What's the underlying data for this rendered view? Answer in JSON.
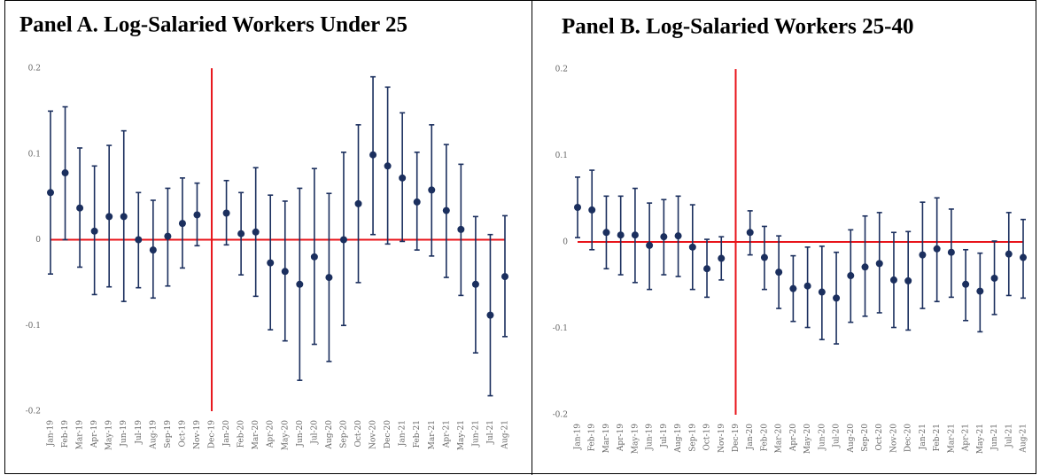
{
  "chart_data": [
    {
      "type": "errorbar",
      "title": "Panel A. Log-Salaried Workers Under 25",
      "categories": [
        "Jan-19",
        "Feb-19",
        "Mar-19",
        "Apr-19",
        "May-19",
        "Jun-19",
        "Jul-19",
        "Aug-19",
        "Sep-19",
        "Oct-19",
        "Nov-19",
        "Dec-19",
        "Jan-20",
        "Feb-20",
        "Mar-20",
        "Apr-20",
        "May-20",
        "Jun-20",
        "Jul-20",
        "Aug-20",
        "Sep-20",
        "Oct-20",
        "Nov-20",
        "Dec-20",
        "Jan-21",
        "Feb-21",
        "Mar-21",
        "Apr-21",
        "May-21",
        "Jun-21",
        "Jul-21",
        "Aug-21"
      ],
      "values": [
        0.055,
        0.078,
        0.037,
        0.01,
        0.027,
        0.027,
        0.0,
        -0.012,
        0.004,
        0.019,
        0.029,
        null,
        0.031,
        0.007,
        0.009,
        -0.027,
        -0.037,
        -0.052,
        -0.02,
        -0.044,
        0.0,
        0.042,
        0.099,
        0.086,
        0.072,
        0.044,
        0.058,
        0.034,
        0.012,
        -0.052,
        -0.088,
        -0.043
      ],
      "lower": [
        -0.04,
        0.0,
        -0.032,
        -0.064,
        -0.055,
        -0.072,
        -0.056,
        -0.068,
        -0.054,
        -0.033,
        -0.007,
        null,
        -0.006,
        -0.041,
        -0.066,
        -0.105,
        -0.118,
        -0.164,
        -0.122,
        -0.142,
        -0.1,
        -0.05,
        0.006,
        -0.005,
        -0.002,
        -0.012,
        -0.019,
        -0.044,
        -0.065,
        -0.132,
        -0.182,
        -0.113
      ],
      "upper": [
        0.15,
        0.155,
        0.107,
        0.086,
        0.11,
        0.127,
        0.055,
        0.046,
        0.06,
        0.072,
        0.066,
        null,
        0.069,
        0.055,
        0.084,
        0.052,
        0.045,
        0.06,
        0.083,
        0.054,
        0.102,
        0.134,
        0.19,
        0.178,
        0.148,
        0.102,
        0.134,
        0.111,
        0.088,
        0.027,
        0.006,
        0.028
      ],
      "color": "#1b2f5e",
      "line_color": "#e8141a",
      "ylim": [
        -0.2,
        0.2
      ],
      "yticks": [
        -0.2,
        -0.1,
        0,
        0.1,
        0.2
      ]
    },
    {
      "type": "errorbar",
      "title": "Panel B. Log-Salaried Workers 25-40",
      "categories": [
        "Jan-19",
        "Feb-19",
        "Mar-19",
        "Apr-19",
        "May-19",
        "Jun-19",
        "Jul-19",
        "Aug-19",
        "Sep-19",
        "Oct-19",
        "Nov-19",
        "Dec-19",
        "Jan-20",
        "Feb-20",
        "Mar-20",
        "Apr-20",
        "May-20",
        "Jun-20",
        "Jul-20",
        "Aug-20",
        "Sep-20",
        "Oct-20",
        "Nov-20",
        "Dec-20",
        "Jan-21",
        "Feb-21",
        "Mar-21",
        "Apr-21",
        "May-21",
        "Jun-21",
        "Jul-21",
        "Aug-21"
      ],
      "values": [
        0.04,
        0.037,
        0.011,
        0.008,
        0.008,
        -0.004,
        0.006,
        0.007,
        -0.006,
        -0.031,
        -0.019,
        null,
        0.011,
        -0.018,
        -0.035,
        -0.054,
        -0.051,
        -0.058,
        -0.065,
        -0.039,
        -0.029,
        -0.025,
        -0.044,
        -0.045,
        -0.015,
        -0.008,
        -0.012,
        -0.049,
        -0.057,
        -0.042,
        -0.014,
        -0.018
      ],
      "lower": [
        0.005,
        -0.009,
        -0.031,
        -0.038,
        -0.047,
        -0.055,
        -0.038,
        -0.04,
        -0.055,
        -0.064,
        -0.044,
        null,
        -0.015,
        -0.055,
        -0.077,
        -0.092,
        -0.099,
        -0.113,
        -0.118,
        -0.093,
        -0.086,
        -0.082,
        -0.099,
        -0.102,
        -0.077,
        -0.069,
        -0.064,
        -0.091,
        -0.104,
        -0.084,
        -0.062,
        -0.065
      ],
      "upper": [
        0.075,
        0.083,
        0.053,
        0.053,
        0.062,
        0.045,
        0.049,
        0.053,
        0.043,
        0.003,
        0.006,
        null,
        0.036,
        0.018,
        0.007,
        -0.016,
        -0.006,
        -0.005,
        -0.012,
        0.014,
        0.03,
        0.034,
        0.011,
        0.012,
        0.046,
        0.051,
        0.038,
        -0.009,
        -0.013,
        0.001,
        0.034,
        0.026
      ],
      "color": "#1b2f5e",
      "line_color": "#e8141a",
      "ylim": [
        -0.2,
        0.2
      ],
      "yticks": [
        -0.2,
        -0.1,
        0,
        0.1,
        0.2
      ]
    }
  ]
}
